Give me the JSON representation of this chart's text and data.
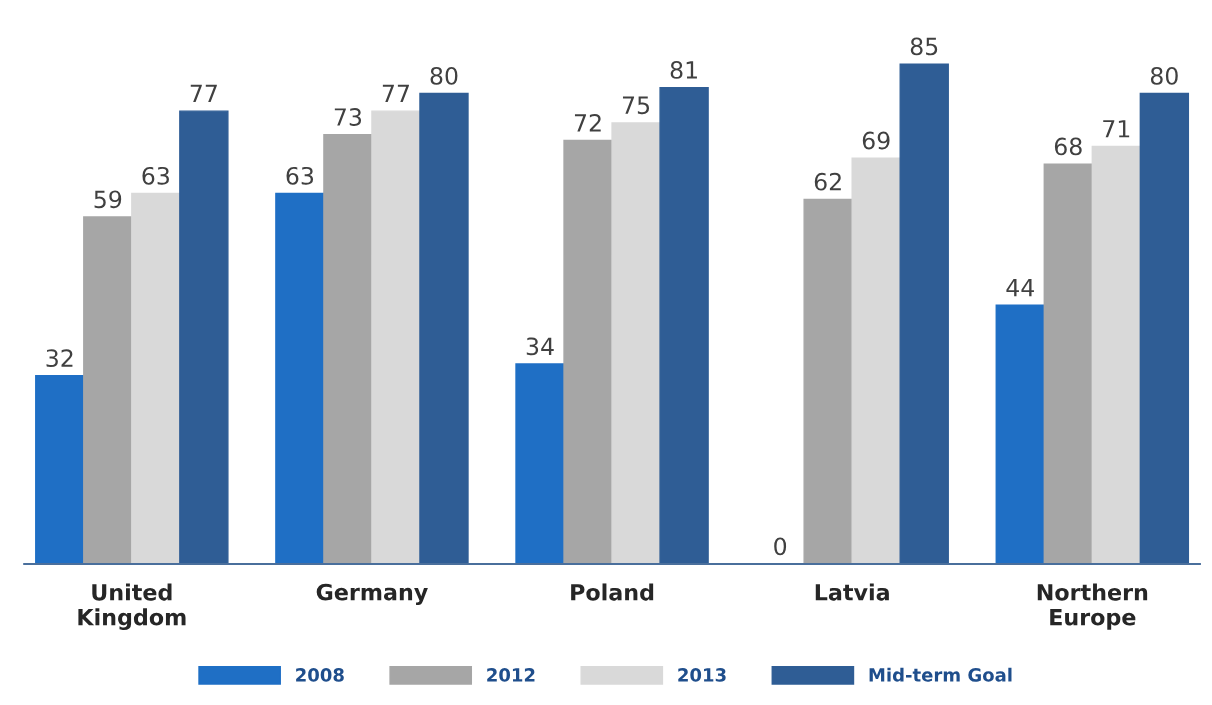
{
  "chart_data": {
    "type": "bar",
    "categories": [
      "United\nKingdom",
      "Germany",
      "Poland",
      "Latvia",
      "Northern\nEurope"
    ],
    "series": [
      {
        "name": "2008",
        "color": "#1f6fc5",
        "values": [
          32,
          63,
          34,
          0,
          44
        ]
      },
      {
        "name": "2012",
        "color": "#a6a6a6",
        "values": [
          59,
          73,
          72,
          62,
          68
        ]
      },
      {
        "name": "2013",
        "color": "#d9d9d9",
        "values": [
          63,
          77,
          75,
          69,
          71
        ]
      },
      {
        "name": "Mid-term Goal",
        "color": "#2f5d95",
        "values": [
          77,
          80,
          81,
          85,
          80
        ]
      }
    ],
    "data_labels": true,
    "legend": "bottom",
    "grid": false
  }
}
